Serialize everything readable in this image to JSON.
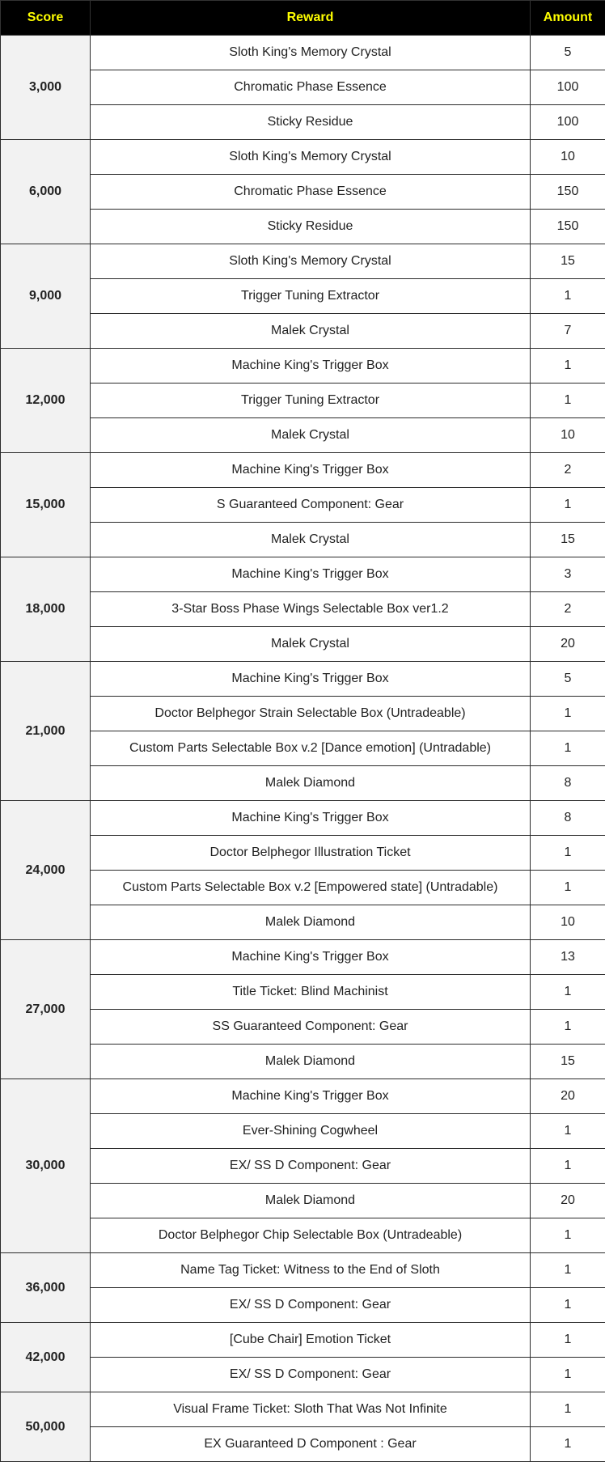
{
  "colors": {
    "header_bg": "#000000",
    "header_text": "#ffff00",
    "score_bg": "#f2f2f2"
  },
  "headers": [
    "Score",
    "Reward",
    "Amount"
  ],
  "groups": [
    {
      "score": "3,000",
      "rewards": [
        [
          "Sloth King's Memory Crystal",
          "5"
        ],
        [
          "Chromatic Phase Essence",
          "100"
        ],
        [
          "Sticky Residue",
          "100"
        ]
      ]
    },
    {
      "score": "6,000",
      "rewards": [
        [
          "Sloth King's Memory Crystal",
          "10"
        ],
        [
          "Chromatic Phase Essence",
          "150"
        ],
        [
          "Sticky Residue",
          "150"
        ]
      ]
    },
    {
      "score": "9,000",
      "rewards": [
        [
          "Sloth King's Memory Crystal",
          "15"
        ],
        [
          "Trigger Tuning Extractor",
          "1"
        ],
        [
          "Malek Crystal",
          "7"
        ]
      ]
    },
    {
      "score": "12,000",
      "rewards": [
        [
          "Machine King's Trigger Box",
          "1"
        ],
        [
          "Trigger Tuning Extractor",
          "1"
        ],
        [
          "Malek Crystal",
          "10"
        ]
      ]
    },
    {
      "score": "15,000",
      "rewards": [
        [
          "Machine King's Trigger Box",
          "2"
        ],
        [
          "S Guaranteed Component: Gear",
          "1"
        ],
        [
          "Malek Crystal",
          "15"
        ]
      ]
    },
    {
      "score": "18,000",
      "rewards": [
        [
          "Machine King's Trigger Box",
          "3"
        ],
        [
          "3-Star Boss Phase Wings Selectable Box ver1.2",
          "2"
        ],
        [
          "Malek Crystal",
          "20"
        ]
      ]
    },
    {
      "score": "21,000",
      "rewards": [
        [
          "Machine King's Trigger Box",
          "5"
        ],
        [
          "Doctor Belphegor Strain Selectable Box (Untradeable)",
          "1"
        ],
        [
          "Custom Parts Selectable Box v.2 [Dance emotion] (Untradable)",
          "1"
        ],
        [
          "Malek Diamond",
          "8"
        ]
      ]
    },
    {
      "score": "24,000",
      "rewards": [
        [
          "Machine King's Trigger Box",
          "8"
        ],
        [
          "Doctor Belphegor Illustration Ticket",
          "1"
        ],
        [
          "Custom Parts Selectable Box v.2 [Empowered state] (Untradable)",
          "1"
        ],
        [
          "Malek Diamond",
          "10"
        ]
      ]
    },
    {
      "score": "27,000",
      "rewards": [
        [
          "Machine King's Trigger Box",
          "13"
        ],
        [
          "Title Ticket: Blind Machinist",
          "1"
        ],
        [
          "SS Guaranteed Component: Gear",
          "1"
        ],
        [
          "Malek Diamond",
          "15"
        ]
      ]
    },
    {
      "score": "30,000",
      "rewards": [
        [
          "Machine King's Trigger Box",
          "20"
        ],
        [
          "Ever-Shining Cogwheel",
          "1"
        ],
        [
          "EX/ SS D Component: Gear",
          "1"
        ],
        [
          "Malek Diamond",
          "20"
        ],
        [
          "Doctor Belphegor Chip Selectable Box (Untradeable)",
          "1"
        ]
      ]
    },
    {
      "score": "36,000",
      "rewards": [
        [
          "Name Tag Ticket: Witness to the End of Sloth",
          "1"
        ],
        [
          "EX/ SS D Component: Gear",
          "1"
        ]
      ]
    },
    {
      "score": "42,000",
      "rewards": [
        [
          "[Cube Chair] Emotion Ticket",
          "1"
        ],
        [
          "EX/ SS D Component: Gear",
          "1"
        ]
      ]
    },
    {
      "score": "50,000",
      "rewards": [
        [
          "Visual Frame Ticket: Sloth That Was Not Infinite",
          "1"
        ],
        [
          "EX Guaranteed D Component : Gear",
          "1"
        ]
      ]
    }
  ]
}
